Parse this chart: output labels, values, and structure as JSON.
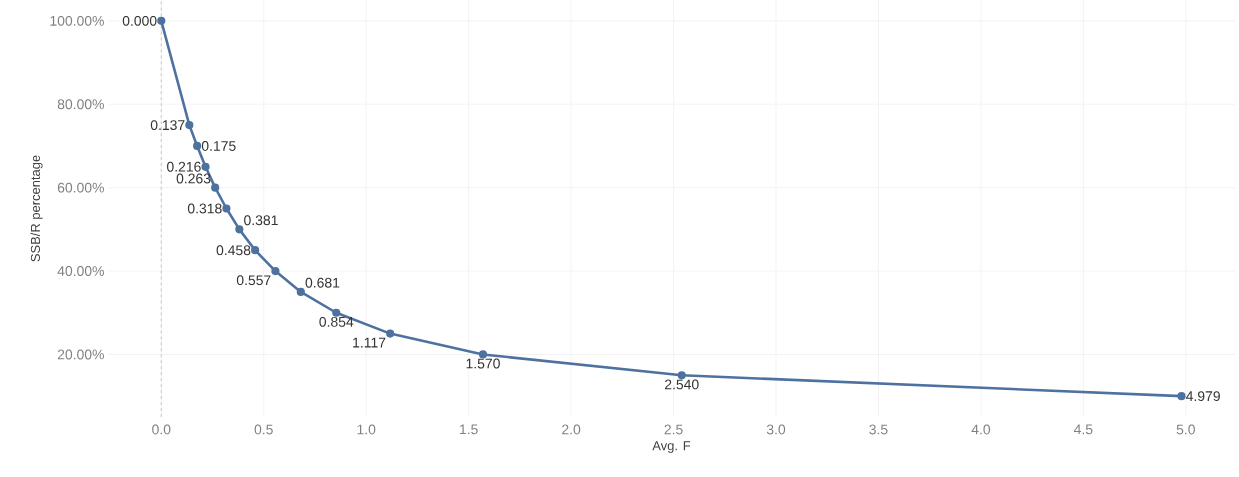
{
  "chart_data": {
    "type": "line",
    "xlabel": "Avg. F",
    "ylabel": "SSB/R percentage",
    "x": [
      0.0,
      0.137,
      0.175,
      0.216,
      0.263,
      0.318,
      0.381,
      0.458,
      0.557,
      0.681,
      0.854,
      1.117,
      1.57,
      2.54,
      4.979
    ],
    "values": [
      100,
      75,
      70,
      65,
      60,
      55,
      50,
      45,
      40,
      35,
      30,
      25,
      20,
      15,
      10
    ],
    "annotations": [
      {
        "text": "0.000",
        "x": 0.0,
        "y": 100
      },
      {
        "text": "0.137",
        "x": 0.137,
        "y": 75
      },
      {
        "text": "0.175",
        "x": 0.175,
        "y": 70
      },
      {
        "text": "0.216",
        "x": 0.216,
        "y": 65
      },
      {
        "text": "0.263",
        "x": 0.263,
        "y": 60
      },
      {
        "text": "0.318",
        "x": 0.318,
        "y": 55
      },
      {
        "text": "0.381",
        "x": 0.381,
        "y": 50
      },
      {
        "text": "0.458",
        "x": 0.458,
        "y": 45
      },
      {
        "text": "0.557",
        "x": 0.557,
        "y": 40
      },
      {
        "text": "0.681",
        "x": 0.681,
        "y": 35
      },
      {
        "text": "0.854",
        "x": 0.854,
        "y": 30
      },
      {
        "text": "1.117",
        "x": 1.117,
        "y": 25
      },
      {
        "text": "1.570",
        "x": 1.57,
        "y": 20
      },
      {
        "text": "2.540",
        "x": 2.54,
        "y": 15
      },
      {
        "text": "4.979",
        "x": 4.979,
        "y": 10
      }
    ],
    "color": "#4e72a0",
    "marker": "circle",
    "line_style": "solid",
    "grid": true,
    "xlim": [
      -0.26,
      5.24
    ],
    "ylim": [
      5,
      105
    ],
    "xticks": [
      {
        "value": 0,
        "label": "0.0"
      },
      {
        "value": 0.5,
        "label": "0.5"
      },
      {
        "value": 1,
        "label": "1.0"
      },
      {
        "value": 1.5,
        "label": "1.5"
      },
      {
        "value": 2,
        "label": "2.0"
      },
      {
        "value": 2.5,
        "label": "2.5"
      },
      {
        "value": 3,
        "label": "3.0"
      },
      {
        "value": 3.5,
        "label": "3.5"
      },
      {
        "value": 4,
        "label": "4.0"
      },
      {
        "value": 4.5,
        "label": "4.5"
      },
      {
        "value": 5,
        "label": "5.0"
      }
    ],
    "yticks": [
      {
        "value": 20,
        "label": "20.00%"
      },
      {
        "value": 40,
        "label": "40.00%"
      },
      {
        "value": 60,
        "label": "60.00%"
      },
      {
        "value": 80,
        "label": "80.00%"
      },
      {
        "value": 100,
        "label": "100.00%"
      }
    ],
    "ref_lines": [
      {
        "axis": "x",
        "value": 0,
        "color": "#aaaaaa",
        "line_style": "dashed"
      }
    ]
  }
}
